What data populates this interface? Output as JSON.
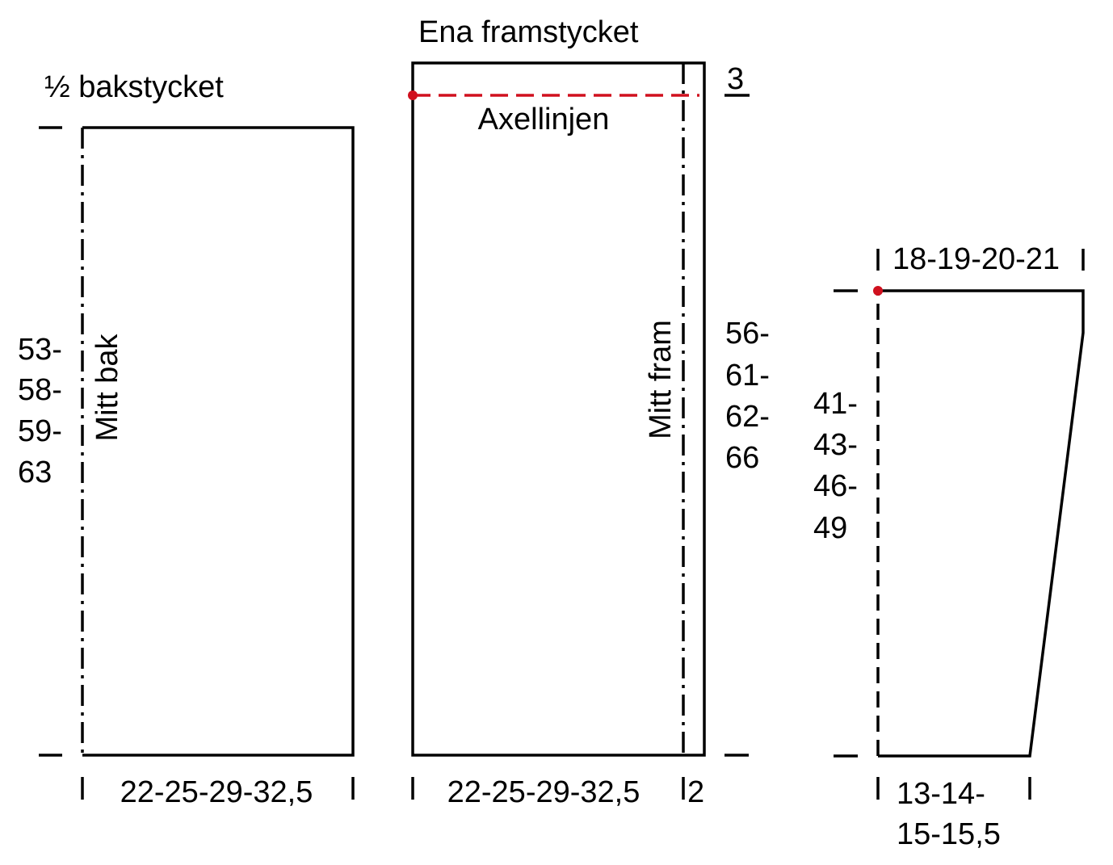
{
  "back": {
    "title": "½ bakstycket",
    "center_label": "Mitt bak",
    "height_lines": [
      "53-",
      "58-",
      "59-",
      "63"
    ],
    "width": "22-25-29-32,5"
  },
  "front": {
    "title": "Ena framstycket",
    "shoulder_label": "Axellinjen",
    "center_label": "Mitt fram",
    "overlap": "3",
    "height_lines": [
      "56-",
      "61-",
      "62-",
      "66"
    ],
    "width": "22-25-29-32,5",
    "band": "2"
  },
  "sleeve": {
    "top_width": "18-19-20-21",
    "height_lines": [
      "41-",
      "43-",
      "46-",
      "49"
    ],
    "bottom_width_lines": [
      "13-14-",
      "15-15,5"
    ]
  }
}
